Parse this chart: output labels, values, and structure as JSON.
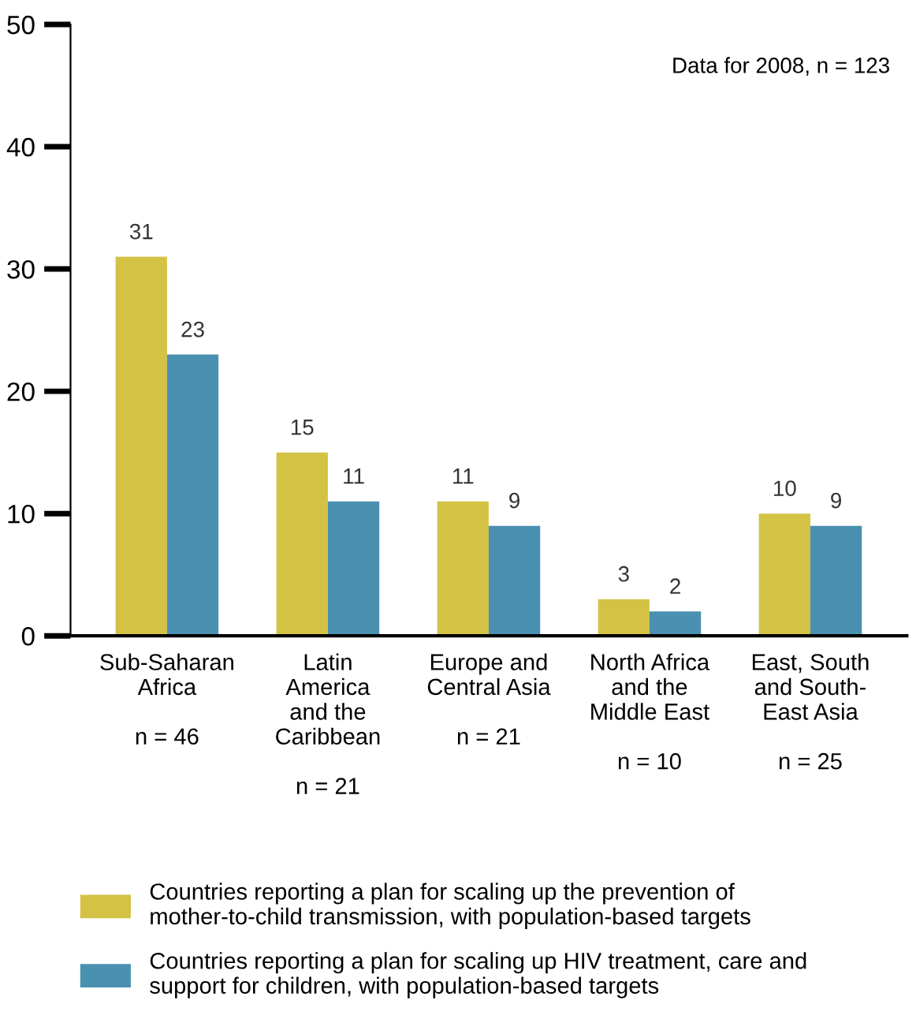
{
  "chart_data": {
    "type": "bar",
    "categories": [
      "Sub-Saharan\nAfrica\n\nn = 46",
      "Latin\nAmerica\nand the\nCaribbean\n\nn = 21",
      "Europe and\nCentral Asia\n\nn = 21",
      "North Africa\nand the\nMiddle East\n\nn = 10",
      "East, South\nand South-\nEast Asia\n\nn = 25"
    ],
    "series": [
      {
        "name": "Countries reporting a plan for scaling up the prevention of\nmother-to-child transmission, with population-based targets",
        "color": "#d4c245",
        "values": [
          31,
          15,
          11,
          3,
          10
        ]
      },
      {
        "name": "Countries reporting a plan for scaling up HIV treatment, care and\nsupport for children, with population-based targets",
        "color": "#4a90b0",
        "values": [
          23,
          11,
          9,
          2,
          9
        ]
      }
    ],
    "ylim": [
      0,
      50
    ],
    "yticks": [
      0,
      10,
      20,
      30,
      40,
      50
    ],
    "grid": false,
    "data_labels": true,
    "legend": "bottom",
    "annotations": [
      "Data for 2008, n = 123"
    ]
  }
}
